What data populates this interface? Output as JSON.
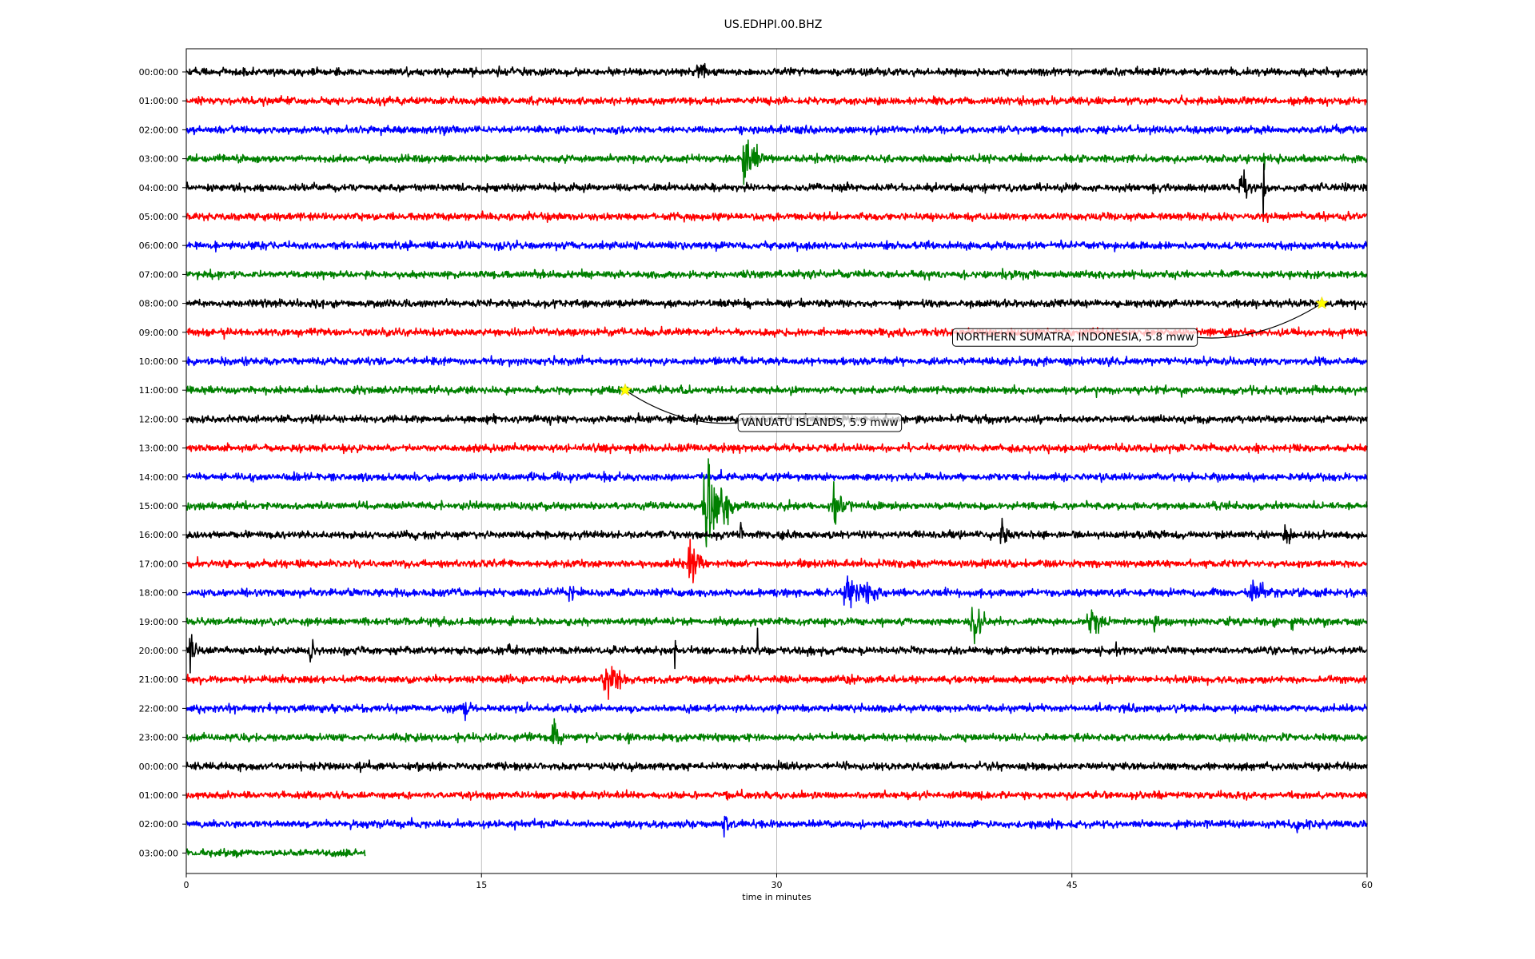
{
  "chart_data": {
    "type": "line",
    "title": "US.EDHPI.00.BHZ",
    "xlabel": "time in minutes",
    "ylabel": "",
    "xlim": [
      0,
      60
    ],
    "x_ticks": [
      0,
      15,
      30,
      45,
      60
    ],
    "grid": "vertical lines at x ticks",
    "trace_color_cycle": [
      "#000000",
      "#ff0000",
      "#0000ff",
      "#008000"
    ],
    "row_labels": [
      "00:00:00",
      "01:00:00",
      "02:00:00",
      "03:00:00",
      "04:00:00",
      "05:00:00",
      "06:00:00",
      "07:00:00",
      "08:00:00",
      "09:00:00",
      "10:00:00",
      "11:00:00",
      "12:00:00",
      "13:00:00",
      "14:00:00",
      "15:00:00",
      "16:00:00",
      "17:00:00",
      "18:00:00",
      "19:00:00",
      "20:00:00",
      "21:00:00",
      "22:00:00",
      "23:00:00",
      "00:00:00",
      "01:00:00",
      "02:00:00",
      "03:00:00"
    ],
    "last_row_end_minute": 9.1,
    "noise_amplitude": 0.13,
    "bursts": [
      {
        "row": 0,
        "minute": 25.8,
        "duration": 1.8,
        "amp": 0.45
      },
      {
        "row": 3,
        "minute": 28.2,
        "duration": 1.8,
        "amp": 1.3
      },
      {
        "row": 3,
        "minute": 54.7,
        "duration": 0.2,
        "amp": 1.7
      },
      {
        "row": 4,
        "minute": 10.8,
        "duration": 0.5,
        "amp": 0.4
      },
      {
        "row": 4,
        "minute": 47.9,
        "duration": 0.4,
        "amp": 0.3
      },
      {
        "row": 4,
        "minute": 53.4,
        "duration": 1.6,
        "amp": 0.6
      },
      {
        "row": 4,
        "minute": 54.7,
        "duration": 0.2,
        "amp": 1.8
      },
      {
        "row": 15,
        "minute": 26.1,
        "duration": 2.8,
        "amp": 1.6
      },
      {
        "row": 15,
        "minute": 32.6,
        "duration": 2.4,
        "amp": 0.6
      },
      {
        "row": 16,
        "minute": 28.1,
        "duration": 0.5,
        "amp": 0.65
      },
      {
        "row": 16,
        "minute": 30.8,
        "duration": 0.9,
        "amp": 0.5
      },
      {
        "row": 16,
        "minute": 41.3,
        "duration": 1.2,
        "amp": 0.6
      },
      {
        "row": 16,
        "minute": 49.4,
        "duration": 0.6,
        "amp": 0.4
      },
      {
        "row": 16,
        "minute": 55.7,
        "duration": 1.0,
        "amp": 0.65
      },
      {
        "row": 17,
        "minute": 25.4,
        "duration": 1.6,
        "amp": 1.0
      },
      {
        "row": 18,
        "minute": 19.4,
        "duration": 0.6,
        "amp": 0.6
      },
      {
        "row": 18,
        "minute": 33.1,
        "duration": 4.2,
        "amp": 0.7
      },
      {
        "row": 18,
        "minute": 54.0,
        "duration": 1.6,
        "amp": 0.75
      },
      {
        "row": 19,
        "minute": 39.8,
        "duration": 1.4,
        "amp": 1.2
      },
      {
        "row": 19,
        "minute": 45.6,
        "duration": 2.8,
        "amp": 0.6
      },
      {
        "row": 19,
        "minute": 49.1,
        "duration": 0.6,
        "amp": 0.7
      },
      {
        "row": 19,
        "minute": 52.9,
        "duration": 0.6,
        "amp": 0.75
      },
      {
        "row": 19,
        "minute": 56.1,
        "duration": 0.4,
        "amp": 0.6
      },
      {
        "row": 20,
        "minute": 0.1,
        "duration": 0.8,
        "amp": 0.9
      },
      {
        "row": 20,
        "minute": 6.2,
        "duration": 0.9,
        "amp": 0.6
      },
      {
        "row": 20,
        "minute": 16.3,
        "duration": 0.5,
        "amp": 0.4
      },
      {
        "row": 20,
        "minute": 24.8,
        "duration": 0.15,
        "amp": 1.1
      },
      {
        "row": 20,
        "minute": 29.0,
        "duration": 0.15,
        "amp": 1.2
      },
      {
        "row": 20,
        "minute": 47.2,
        "duration": 0.15,
        "amp": 0.9
      },
      {
        "row": 21,
        "minute": 21.0,
        "duration": 2.2,
        "amp": 1.0
      },
      {
        "row": 22,
        "minute": 14.0,
        "duration": 0.8,
        "amp": 0.55
      },
      {
        "row": 23,
        "minute": 18.5,
        "duration": 1.0,
        "amp": 0.95
      },
      {
        "row": 23,
        "minute": 22.4,
        "duration": 0.3,
        "amp": 0.7
      },
      {
        "row": 26,
        "minute": 27.2,
        "duration": 0.9,
        "amp": 0.5
      },
      {
        "row": 26,
        "minute": 56.4,
        "duration": 0.4,
        "amp": 0.35
      }
    ],
    "events": [
      {
        "label": "NORTHERN SUMATRA, INDONESIA, 5.8 mww",
        "row": 8,
        "minute": 57.7,
        "label_row": 9.15,
        "label_minute": 39.1
      },
      {
        "label": "VANUATU ISLANDS, 5.9 mww",
        "row": 11,
        "minute": 22.3,
        "label_row": 12.1,
        "label_minute": 28.2
      }
    ]
  }
}
